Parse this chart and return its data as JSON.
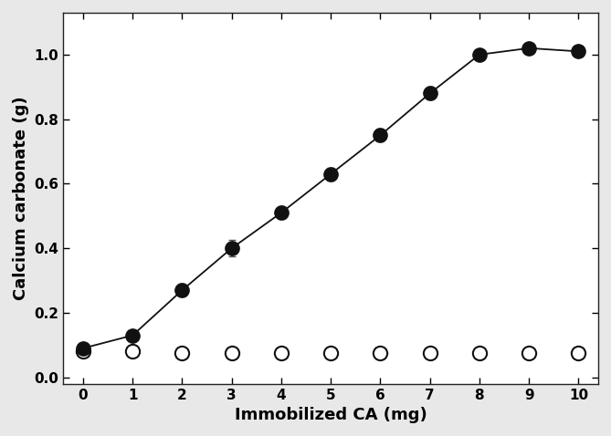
{
  "x": [
    0,
    1,
    2,
    3,
    4,
    5,
    6,
    7,
    8,
    9,
    10
  ],
  "filled_y": [
    0.09,
    0.13,
    0.27,
    0.4,
    0.51,
    0.63,
    0.75,
    0.88,
    1.0,
    1.02,
    1.01
  ],
  "filled_yerr": [
    0.01,
    0.015,
    0.02,
    0.025,
    0.02,
    0.02,
    0.02,
    0.02,
    0.015,
    0.01,
    0.01
  ],
  "open_y": [
    0.08,
    0.08,
    0.075,
    0.075,
    0.075,
    0.075,
    0.075,
    0.075,
    0.075,
    0.075,
    0.075
  ],
  "open_yerr": [
    0.01,
    0.01,
    0.008,
    0.008,
    0.008,
    0.008,
    0.008,
    0.008,
    0.008,
    0.008,
    0.008
  ],
  "xlabel": "Immobilized CA (mg)",
  "ylabel": "Calcium carbonate (g)",
  "xlim": [
    -0.4,
    10.4
  ],
  "ylim": [
    -0.02,
    1.13
  ],
  "yticks": [
    0.0,
    0.2,
    0.4,
    0.6,
    0.8,
    1.0
  ],
  "xticks": [
    0,
    1,
    2,
    3,
    4,
    5,
    6,
    7,
    8,
    9,
    10
  ],
  "line_color": "#333333",
  "filled_marker_color": "#111111",
  "open_marker_color": "#ffffff",
  "marker_size": 11,
  "linewidth": 1.3,
  "xlabel_fontsize": 13,
  "ylabel_fontsize": 13,
  "tick_fontsize": 11,
  "figure_facecolor": "#e8e8e8",
  "axes_facecolor": "#ffffff"
}
